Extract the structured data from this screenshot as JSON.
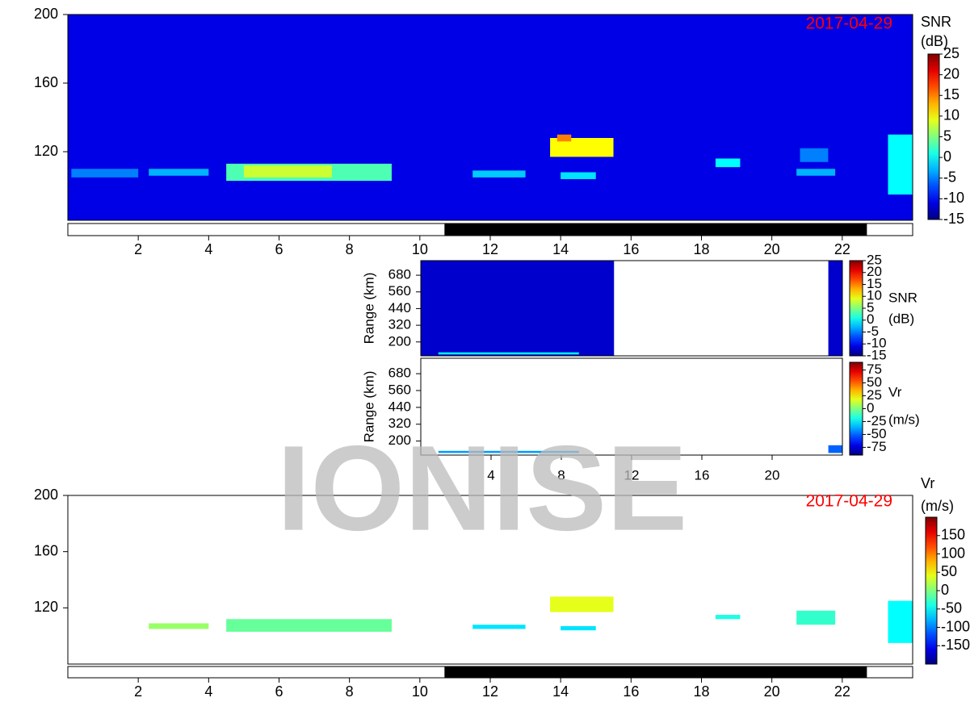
{
  "watermark": "IONISE",
  "chart_data": [
    {
      "type": "heatmap",
      "date": "2017-04-29",
      "xlim": [
        0,
        24
      ],
      "xticks": [
        2,
        4,
        6,
        8,
        10,
        12,
        14,
        16,
        18,
        20,
        22
      ],
      "ylim": [
        80,
        200
      ],
      "yticks": [
        120,
        160,
        200
      ],
      "colorbar_label": [
        "SNR",
        "(dB)"
      ],
      "clim": [
        -15,
        25
      ],
      "cticks": [
        -15,
        -10,
        -5,
        0,
        5,
        10,
        15,
        20,
        25
      ],
      "background_value": -11,
      "night": [
        10.7,
        22.7
      ],
      "echoes": [
        {
          "x": [
            4.5,
            9.2
          ],
          "y": [
            103,
            113
          ],
          "value": 3
        },
        {
          "x": [
            5,
            7.5
          ],
          "y": [
            105,
            112
          ],
          "value": 8
        },
        {
          "x": [
            2.3,
            4
          ],
          "y": [
            106,
            110
          ],
          "value": -3
        },
        {
          "x": [
            0.1,
            2
          ],
          "y": [
            105,
            110
          ],
          "value": -5
        },
        {
          "x": [
            11.5,
            13
          ],
          "y": [
            105,
            109
          ],
          "value": -2
        },
        {
          "x": [
            13.7,
            15.5
          ],
          "y": [
            117,
            128
          ],
          "value": 10
        },
        {
          "x": [
            13.9,
            14.3
          ],
          "y": [
            126,
            130
          ],
          "value": 15
        },
        {
          "x": [
            14,
            15
          ],
          "y": [
            104,
            108
          ],
          "value": -1
        },
        {
          "x": [
            18.4,
            19.1
          ],
          "y": [
            111,
            116
          ],
          "value": 0
        },
        {
          "x": [
            20.7,
            21.8
          ],
          "y": [
            106,
            110
          ],
          "value": -3
        },
        {
          "x": [
            20.8,
            21.6
          ],
          "y": [
            114,
            122
          ],
          "value": -5
        },
        {
          "x": [
            23.3,
            24
          ],
          "y": [
            95,
            130
          ],
          "value": 0
        }
      ]
    },
    {
      "type": "heatmap",
      "ylabel": "Range (km)",
      "xlim": [
        0,
        24
      ],
      "ylim": [
        100,
        785
      ],
      "yticks": [
        200,
        320,
        440,
        560,
        680
      ],
      "colorbar_label": [
        "SNR",
        "(dB)"
      ],
      "clim": [
        -15,
        25
      ],
      "cticks": [
        -15,
        -10,
        -5,
        0,
        5,
        10,
        15,
        20,
        25
      ],
      "echoes": [
        {
          "x": [
            0,
            11
          ],
          "y": [
            100,
            785
          ],
          "value": -12
        },
        {
          "x": [
            23.2,
            24
          ],
          "y": [
            100,
            785
          ],
          "value": -12
        },
        {
          "x": [
            1,
            9
          ],
          "y": [
            110,
            125
          ],
          "value": 0
        }
      ]
    },
    {
      "type": "heatmap",
      "ylabel": "Range (km)",
      "xlim": [
        0,
        24
      ],
      "xticks": [
        4,
        8,
        12,
        16,
        20
      ],
      "ylim": [
        100,
        790
      ],
      "yticks": [
        200,
        320,
        440,
        560,
        680
      ],
      "colorbar_label": [
        "Vr",
        "(m/s)"
      ],
      "clim": [
        -90,
        90
      ],
      "cticks": [
        -75,
        -50,
        -25,
        0,
        25,
        50,
        75
      ],
      "echoes": [
        {
          "x": [
            1,
            9
          ],
          "y": [
            115,
            130
          ],
          "value": -40
        },
        {
          "x": [
            23.2,
            24
          ],
          "y": [
            115,
            170
          ],
          "value": -50
        }
      ]
    },
    {
      "type": "heatmap",
      "date": "2017-04-29",
      "xlim": [
        0,
        24
      ],
      "xticks": [
        2,
        4,
        6,
        8,
        10,
        12,
        14,
        16,
        18,
        20,
        22
      ],
      "ylim": [
        80,
        200
      ],
      "yticks": [
        120,
        160,
        200
      ],
      "colorbar_label": [
        "Vr",
        "(m/s)"
      ],
      "clim": [
        -200,
        200
      ],
      "cticks": [
        -150,
        -100,
        -50,
        0,
        50,
        100,
        150
      ],
      "night": [
        10.7,
        22.7
      ],
      "echoes": [
        {
          "x": [
            4.5,
            9.2
          ],
          "y": [
            103,
            112
          ],
          "value": -10
        },
        {
          "x": [
            13.7,
            15.5
          ],
          "y": [
            117,
            128
          ],
          "value": 40
        },
        {
          "x": [
            11.5,
            13
          ],
          "y": [
            105,
            108
          ],
          "value": -60
        },
        {
          "x": [
            14,
            15
          ],
          "y": [
            104,
            107
          ],
          "value": -60
        },
        {
          "x": [
            2.3,
            4
          ],
          "y": [
            105,
            109
          ],
          "value": 10
        },
        {
          "x": [
            18.4,
            19.1
          ],
          "y": [
            112,
            115
          ],
          "value": -40
        },
        {
          "x": [
            20.7,
            21.8
          ],
          "y": [
            108,
            118
          ],
          "value": -30
        },
        {
          "x": [
            23.3,
            24
          ],
          "y": [
            95,
            125
          ],
          "value": -50
        }
      ]
    }
  ]
}
